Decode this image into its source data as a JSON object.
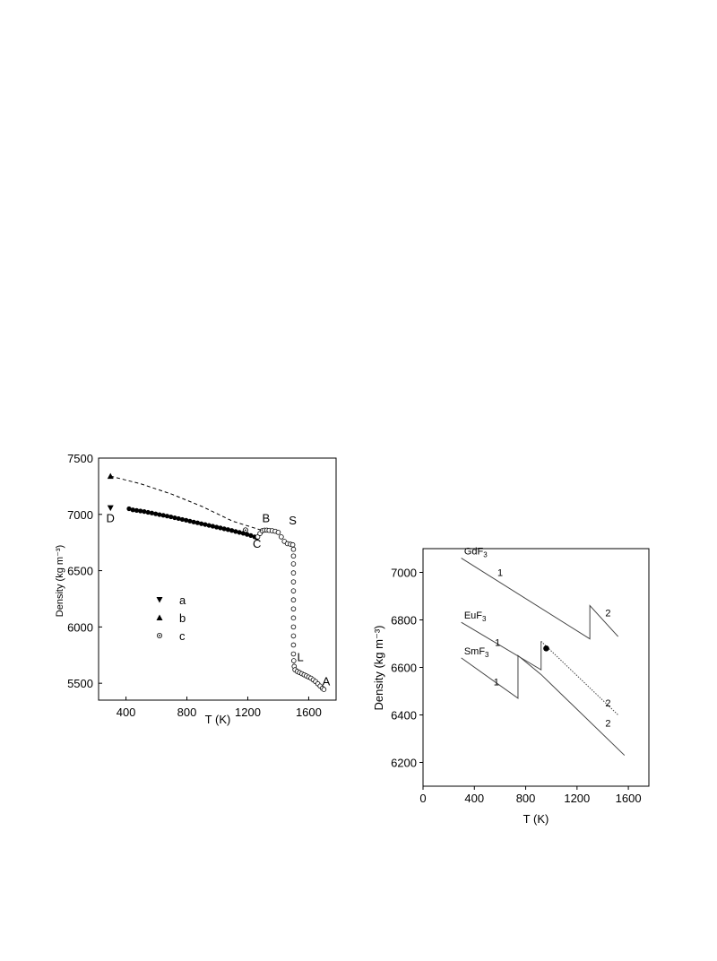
{
  "chart_data": [
    {
      "type": "scatter",
      "xlabel": "T (K)",
      "ylabel": "Density (kg m⁻³)",
      "xlim": [
        220,
        1780
      ],
      "ylim": [
        5350,
        7500
      ],
      "xticks": [
        400,
        800,
        1200,
        1600
      ],
      "yticks": [
        5500,
        6000,
        6500,
        7000,
        7500
      ],
      "legend": {
        "position": "center-left",
        "entries": [
          "a",
          "b",
          "c"
        ]
      },
      "series": [
        {
          "name": "a",
          "marker": "triangle-down",
          "points": [
            [
              298,
              7057
            ]
          ]
        },
        {
          "name": "b",
          "marker": "triangle-up",
          "points": [
            [
              298,
              7340
            ]
          ]
        },
        {
          "name": "c",
          "marker": "circle-cross",
          "points": [
            [
              1185,
              6860
            ]
          ]
        },
        {
          "marker": "filled-circle",
          "points": [
            [
              420,
              7050
            ],
            [
              445,
              7040
            ],
            [
              470,
              7035
            ],
            [
              495,
              7030
            ],
            [
              520,
              7025
            ],
            [
              545,
              7018
            ],
            [
              570,
              7012
            ],
            [
              595,
              7005
            ],
            [
              620,
              6998
            ],
            [
              645,
              6992
            ],
            [
              670,
              6985
            ],
            [
              695,
              6978
            ],
            [
              720,
              6970
            ],
            [
              745,
              6963
            ],
            [
              770,
              6955
            ],
            [
              795,
              6948
            ],
            [
              820,
              6940
            ],
            [
              845,
              6932
            ],
            [
              870,
              6925
            ],
            [
              895,
              6917
            ],
            [
              920,
              6910
            ],
            [
              945,
              6902
            ],
            [
              970,
              6895
            ],
            [
              995,
              6887
            ],
            [
              1020,
              6880
            ],
            [
              1045,
              6872
            ],
            [
              1070,
              6865
            ],
            [
              1095,
              6857
            ],
            [
              1120,
              6848
            ],
            [
              1145,
              6840
            ],
            [
              1170,
              6832
            ],
            [
              1195,
              6822
            ],
            [
              1220,
              6812
            ],
            [
              1245,
              6800
            ],
            [
              1260,
              6793
            ]
          ]
        },
        {
          "marker": "open-circle",
          "points": [
            [
              1265,
              6800
            ],
            [
              1280,
              6830
            ],
            [
              1295,
              6855
            ],
            [
              1310,
              6860
            ],
            [
              1325,
              6860
            ],
            [
              1340,
              6858
            ],
            [
              1360,
              6855
            ],
            [
              1380,
              6850
            ],
            [
              1400,
              6840
            ],
            [
              1420,
              6800
            ],
            [
              1440,
              6760
            ],
            [
              1460,
              6740
            ],
            [
              1480,
              6735
            ],
            [
              1495,
              6730
            ],
            [
              1500,
              6690
            ],
            [
              1500,
              6630
            ],
            [
              1500,
              6560
            ],
            [
              1500,
              6480
            ],
            [
              1500,
              6400
            ],
            [
              1500,
              6320
            ],
            [
              1500,
              6240
            ],
            [
              1500,
              6160
            ],
            [
              1500,
              6080
            ],
            [
              1500,
              6000
            ],
            [
              1500,
              5920
            ],
            [
              1500,
              5840
            ],
            [
              1500,
              5760
            ],
            [
              1502,
              5700
            ],
            [
              1505,
              5650
            ],
            [
              1510,
              5620
            ],
            [
              1525,
              5605
            ],
            [
              1540,
              5595
            ],
            [
              1555,
              5585
            ],
            [
              1570,
              5575
            ],
            [
              1585,
              5565
            ],
            [
              1600,
              5555
            ],
            [
              1615,
              5545
            ],
            [
              1630,
              5530
            ],
            [
              1645,
              5515
            ],
            [
              1660,
              5495
            ],
            [
              1675,
              5475
            ],
            [
              1690,
              5455
            ],
            [
              1700,
              5445
            ]
          ]
        },
        {
          "style": "dashed",
          "points": [
            [
              298,
              7340
            ],
            [
              500,
              7270
            ],
            [
              700,
              7180
            ],
            [
              900,
              7070
            ],
            [
              1100,
              6940
            ],
            [
              1300,
              6855
            ]
          ]
        }
      ],
      "annotations": [
        {
          "text": "D",
          "x": 298,
          "y": 6930
        },
        {
          "text": "B",
          "x": 1320,
          "y": 6930
        },
        {
          "text": "C",
          "x": 1260,
          "y": 6705
        },
        {
          "text": "S",
          "x": 1495,
          "y": 6910
        },
        {
          "text": "L",
          "x": 1545,
          "y": 5695
        },
        {
          "text": "A",
          "x": 1715,
          "y": 5480
        }
      ]
    },
    {
      "type": "line",
      "xlabel": "T (K)",
      "ylabel": "Density (kg m⁻³)",
      "xlim": [
        0,
        1760
      ],
      "ylim": [
        6100,
        7100
      ],
      "xticks": [
        0,
        400,
        800,
        1200,
        1600
      ],
      "yticks": [
        6200,
        6400,
        6600,
        6800,
        7000
      ],
      "series": [
        {
          "name": "GdF3",
          "style": "solid",
          "points": [
            [
              298,
              7060
            ],
            [
              1300,
              6720
            ],
            [
              1300,
              6860
            ],
            [
              1520,
              6730
            ]
          ]
        },
        {
          "name": "EuF3",
          "style": "solid-then-dotted",
          "points": [
            [
              298,
              6790
            ],
            [
              920,
              6590
            ],
            [
              920,
              6710
            ],
            [
              1520,
              6400
            ]
          ]
        },
        {
          "name": "SmF3",
          "style": "solid",
          "points": [
            [
              298,
              6640
            ],
            [
              740,
              6470
            ],
            [
              740,
              6650
            ],
            [
              920,
              6570
            ],
            [
              1570,
              6230
            ]
          ]
        }
      ],
      "point": {
        "x": 960,
        "y": 6680
      },
      "labels": [
        {
          "text": "GdF",
          "sub": "3",
          "x": 320,
          "y": 7060
        },
        {
          "text": "1",
          "x": 580,
          "y": 6970
        },
        {
          "text": "2",
          "x": 1420,
          "y": 6800
        },
        {
          "text": "EuF",
          "sub": "3",
          "x": 320,
          "y": 6790
        },
        {
          "text": "1",
          "x": 560,
          "y": 6675
        },
        {
          "text": "2",
          "x": 1420,
          "y": 6420
        },
        {
          "text": "SmF",
          "sub": "3",
          "x": 320,
          "y": 6640
        },
        {
          "text": "1",
          "x": 550,
          "y": 6510
        },
        {
          "text": "2",
          "x": 1420,
          "y": 6335
        }
      ]
    }
  ]
}
